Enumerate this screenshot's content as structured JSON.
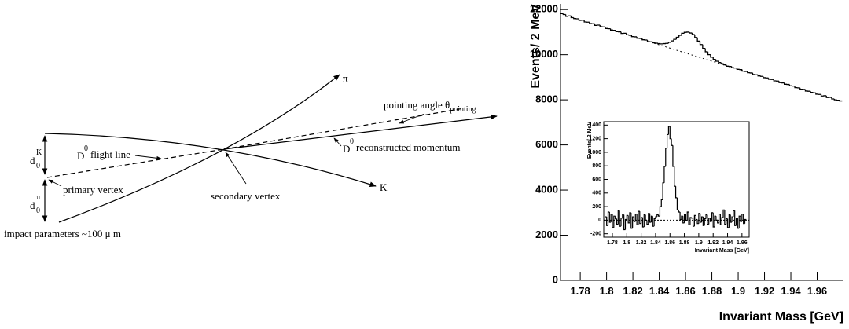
{
  "diagram": {
    "pi_label": "π",
    "k_label": "K",
    "pointing_angle": {
      "text": "pointing angle θ",
      "sub": "pointing"
    },
    "d0k": {
      "base": "d",
      "sub": "0",
      "sup": "K"
    },
    "d0pi": {
      "base": "d",
      "sub": "0",
      "sup": "π"
    },
    "flight_line": {
      "base": "D",
      "sup": "0",
      "text": "flight line"
    },
    "reco_momentum": {
      "base": "D",
      "sup": "0",
      "text": "reconstructed momentum"
    },
    "primary_vertex": "primary vertex",
    "secondary_vertex": "secondary vertex",
    "impact": "impact parameters ~100 μ m"
  },
  "chart_data": [
    {
      "type": "histogram",
      "x_label": "Invariant Mass [GeV]",
      "y_label": "Events/ 2 MeV",
      "color": "#000000",
      "bins": [
        1.765,
        1.767,
        1.769,
        1.771,
        1.773,
        1.775,
        1.777,
        1.779,
        1.781,
        1.783,
        1.785,
        1.787,
        1.789,
        1.791,
        1.793,
        1.795,
        1.797,
        1.799,
        1.801,
        1.803,
        1.805,
        1.807,
        1.809,
        1.811,
        1.813,
        1.815,
        1.817,
        1.819,
        1.821,
        1.823,
        1.825,
        1.827,
        1.829,
        1.831,
        1.833,
        1.835,
        1.837,
        1.839,
        1.841,
        1.843,
        1.845,
        1.847,
        1.849,
        1.851,
        1.853,
        1.855,
        1.857,
        1.859,
        1.861,
        1.863,
        1.865,
        1.867,
        1.869,
        1.871,
        1.873,
        1.875,
        1.877,
        1.879,
        1.881,
        1.883,
        1.885,
        1.887,
        1.889,
        1.891,
        1.893,
        1.895,
        1.897,
        1.899,
        1.901,
        1.903,
        1.905,
        1.907,
        1.909,
        1.911,
        1.913,
        1.915,
        1.917,
        1.919,
        1.921,
        1.923,
        1.925,
        1.927,
        1.929,
        1.931,
        1.933,
        1.935,
        1.937,
        1.939,
        1.941,
        1.943,
        1.945,
        1.947,
        1.949,
        1.951,
        1.953,
        1.955,
        1.957,
        1.959,
        1.961,
        1.963,
        1.965,
        1.967,
        1.969,
        1.971,
        1.973,
        1.975,
        1.977,
        1.979
      ],
      "values": [
        11820,
        11780,
        11700,
        11720,
        11640,
        11600,
        11590,
        11520,
        11530,
        11450,
        11440,
        11380,
        11370,
        11300,
        11310,
        11240,
        11230,
        11160,
        11150,
        11090,
        11080,
        11020,
        11010,
        10940,
        10950,
        10880,
        10860,
        10800,
        10790,
        10730,
        10720,
        10660,
        10650,
        10580,
        10570,
        10530,
        10510,
        10490,
        10480,
        10490,
        10500,
        10550,
        10610,
        10680,
        10770,
        10860,
        10950,
        10990,
        11000,
        10960,
        10890,
        10760,
        10600,
        10450,
        10280,
        10130,
        10000,
        9890,
        9790,
        9710,
        9650,
        9600,
        9550,
        9490,
        9480,
        9420,
        9410,
        9350,
        9340,
        9270,
        9260,
        9200,
        9190,
        9120,
        9110,
        9060,
        9040,
        8980,
        8970,
        8910,
        8900,
        8840,
        8830,
        8760,
        8750,
        8690,
        8680,
        8620,
        8610,
        8540,
        8530,
        8470,
        8460,
        8390,
        8380,
        8330,
        8310,
        8250,
        8240,
        8170,
        8180,
        8100,
        8110,
        8040,
        8000,
        7980,
        7950
      ],
      "fit": {
        "x": [
          1.836,
          1.906
        ],
        "values": [
          10510,
          9240
        ]
      },
      "xlim": [
        1.765,
        1.98
      ],
      "ylim": [
        0,
        12250
      ],
      "xticks": [
        1.78,
        1.8,
        1.82,
        1.84,
        1.86,
        1.88,
        1.9,
        1.92,
        1.94,
        1.96
      ],
      "yticks": [
        0,
        2000,
        4000,
        6000,
        8000,
        10000,
        12000
      ]
    },
    {
      "type": "histogram",
      "x_label": "Invariant Mass [GeV]",
      "y_label": "Events/ 2 MeV",
      "color": "#000000",
      "bins": [
        1.77,
        1.772,
        1.774,
        1.776,
        1.778,
        1.78,
        1.782,
        1.784,
        1.786,
        1.788,
        1.79,
        1.792,
        1.794,
        1.796,
        1.798,
        1.8,
        1.802,
        1.804,
        1.806,
        1.808,
        1.81,
        1.812,
        1.814,
        1.816,
        1.818,
        1.82,
        1.822,
        1.824,
        1.826,
        1.828,
        1.83,
        1.832,
        1.834,
        1.836,
        1.838,
        1.84,
        1.842,
        1.844,
        1.846,
        1.848,
        1.85,
        1.852,
        1.854,
        1.856,
        1.858,
        1.86,
        1.862,
        1.864,
        1.866,
        1.868,
        1.87,
        1.872,
        1.874,
        1.876,
        1.878,
        1.88,
        1.882,
        1.884,
        1.886,
        1.888,
        1.89,
        1.892,
        1.894,
        1.896,
        1.898,
        1.9,
        1.902,
        1.904,
        1.906,
        1.908,
        1.91,
        1.912,
        1.914,
        1.916,
        1.918,
        1.92,
        1.922,
        1.924,
        1.926,
        1.928,
        1.93,
        1.932,
        1.934,
        1.936,
        1.938,
        1.94,
        1.942,
        1.944,
        1.946,
        1.948,
        1.95,
        1.952,
        1.954,
        1.956,
        1.958,
        1.96,
        1.962,
        1.964,
        1.966
      ],
      "values": [
        50,
        -80,
        120,
        -30,
        90,
        -110,
        60,
        20,
        -60,
        140,
        -90,
        30,
        80,
        -140,
        10,
        70,
        -40,
        110,
        -120,
        50,
        -20,
        90,
        -70,
        130,
        -50,
        40,
        -100,
        80,
        0,
        -60,
        100,
        -30,
        60,
        -90,
        20,
        50,
        80,
        60,
        200,
        300,
        550,
        790,
        1060,
        1260,
        1380,
        1200,
        1100,
        790,
        500,
        330,
        150,
        120,
        10,
        60,
        -40,
        90,
        -10,
        120,
        -70,
        40,
        30,
        -90,
        70,
        10,
        -50,
        100,
        -30,
        50,
        -80,
        20,
        80,
        -60,
        30,
        -20,
        110,
        -100,
        60,
        0,
        -40,
        90,
        -70,
        40,
        150,
        -60,
        20,
        -110,
        80,
        -30,
        50,
        140,
        -80,
        30,
        -120,
        60,
        -20,
        90,
        -50,
        10
      ],
      "fit": {
        "x": [
          1.768,
          1.97
        ],
        "values": [
          0,
          0
        ]
      },
      "xlim": [
        1.768,
        1.97
      ],
      "ylim": [
        -250,
        1450
      ],
      "xticks": [
        1.78,
        1.8,
        1.82,
        1.84,
        1.86,
        1.88,
        1.9,
        1.92,
        1.94,
        1.96
      ],
      "yticks": [
        -200,
        0,
        200,
        400,
        600,
        800,
        1000,
        1200,
        1400
      ]
    }
  ]
}
